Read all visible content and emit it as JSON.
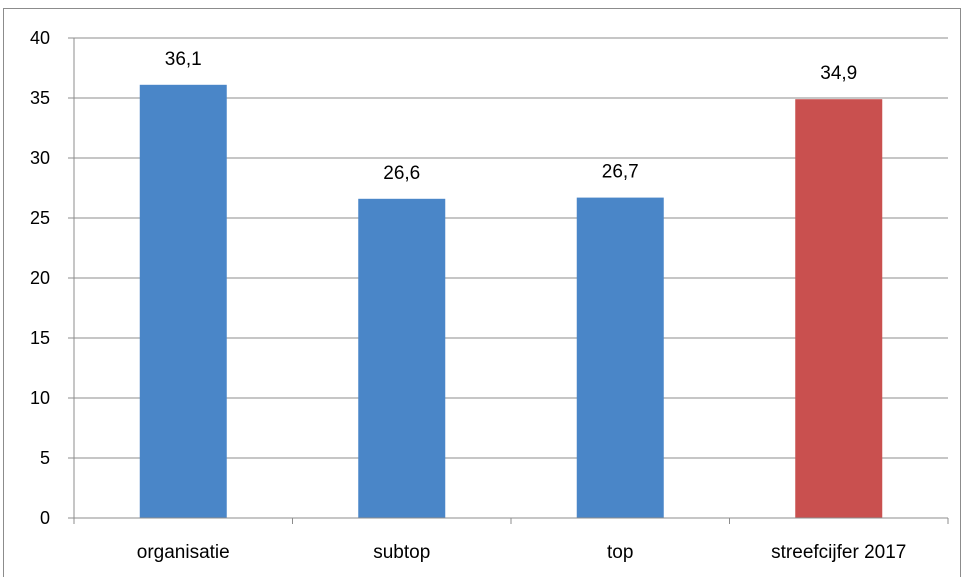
{
  "chart_data": {
    "type": "bar",
    "title": "",
    "xlabel": "",
    "ylabel": "",
    "categories": [
      "organisatie",
      "subtop",
      "top",
      "streefcijfer 2017"
    ],
    "values": [
      36.1,
      26.6,
      26.7,
      34.9
    ],
    "data_labels": [
      "36,1",
      "26,6",
      "26,7",
      "34,9"
    ],
    "bar_colors": [
      "#4a86c8",
      "#4a86c8",
      "#4a86c8",
      "#c9504f"
    ],
    "ylim": [
      0,
      40
    ],
    "yticks": [
      0,
      5,
      10,
      15,
      20,
      25,
      30,
      35,
      40
    ],
    "grid": true,
    "legend": "none"
  }
}
